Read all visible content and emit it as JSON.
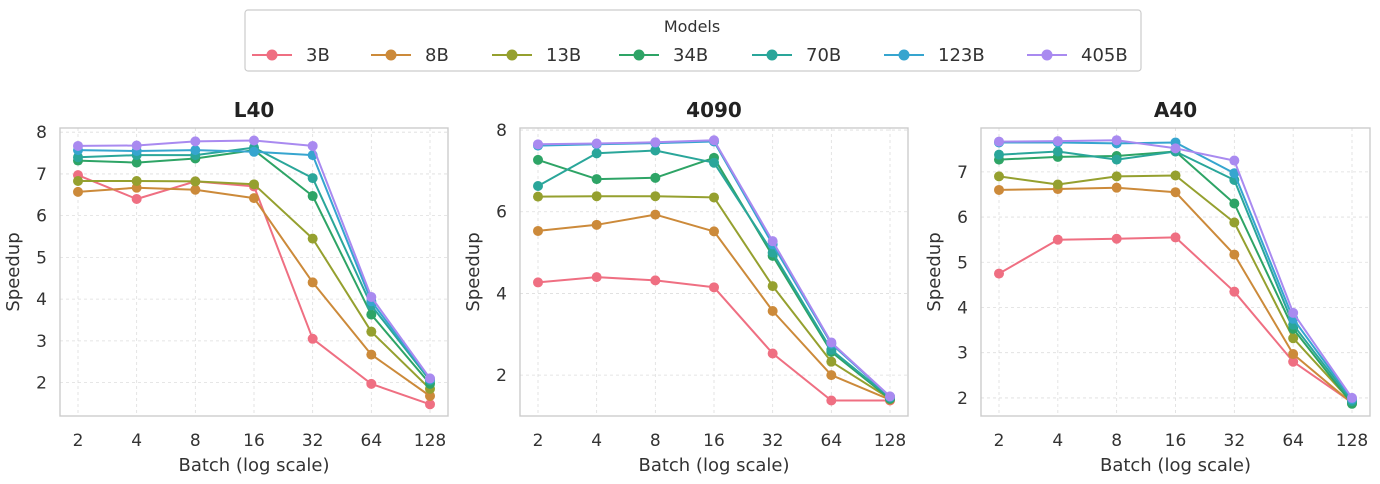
{
  "chart_data": {
    "type": "line",
    "legend": {
      "title": "Models",
      "placement": "top-center",
      "entries": [
        "3B",
        "8B",
        "13B",
        "34B",
        "70B",
        "123B",
        "405B"
      ]
    },
    "colors": {
      "3B": "#ef6f82",
      "8B": "#cc8a3a",
      "13B": "#95a02f",
      "34B": "#2ea466",
      "70B": "#2aa69a",
      "123B": "#36a5cf",
      "405B": "#a98af0"
    },
    "x": [
      2,
      4,
      8,
      16,
      32,
      64,
      128
    ],
    "x_tick_labels": [
      "2",
      "4",
      "8",
      "16",
      "32",
      "64",
      "128"
    ],
    "x_scale": "log2",
    "grid": true,
    "panels": [
      {
        "title": "L40",
        "xlabel": "Batch (log scale)",
        "ylabel": "Speedup",
        "ylim": [
          1.2,
          8.1
        ],
        "yticks": [
          2,
          3,
          4,
          5,
          6,
          7,
          8
        ],
        "series": [
          {
            "name": "3B",
            "values": [
              6.97,
              6.4,
              6.82,
              6.7,
              3.05,
              1.97,
              1.48
            ]
          },
          {
            "name": "8B",
            "values": [
              6.57,
              6.67,
              6.62,
              6.42,
              4.4,
              2.67,
              1.68
            ]
          },
          {
            "name": "13B",
            "values": [
              6.83,
              6.83,
              6.82,
              6.75,
              5.45,
              3.22,
              1.85
            ]
          },
          {
            "name": "34B",
            "values": [
              7.32,
              7.27,
              7.37,
              7.57,
              6.47,
              3.63,
              1.97
            ]
          },
          {
            "name": "70B",
            "values": [
              7.4,
              7.45,
              7.45,
              7.63,
              6.9,
              3.85,
              2.05
            ]
          },
          {
            "name": "123B",
            "values": [
              7.57,
              7.55,
              7.57,
              7.53,
              7.45,
              3.95,
              2.08
            ]
          },
          {
            "name": "405B",
            "values": [
              7.67,
              7.68,
              7.78,
              7.8,
              7.67,
              4.05,
              2.1
            ]
          }
        ]
      },
      {
        "title": "4090",
        "xlabel": "Batch (log scale)",
        "ylabel": "Speedup",
        "ylim": [
          1.0,
          8.05
        ],
        "yticks": [
          2,
          4,
          6,
          8
        ],
        "series": [
          {
            "name": "3B",
            "values": [
              4.27,
              4.4,
              4.32,
              4.15,
              2.53,
              1.38,
              1.38
            ]
          },
          {
            "name": "8B",
            "values": [
              5.53,
              5.68,
              5.93,
              5.52,
              3.57,
              2.0,
              1.4
            ]
          },
          {
            "name": "13B",
            "values": [
              6.37,
              6.38,
              6.38,
              6.35,
              4.18,
              2.33,
              1.42
            ]
          },
          {
            "name": "34B",
            "values": [
              7.27,
              6.8,
              6.83,
              7.32,
              4.92,
              2.57,
              1.42
            ]
          },
          {
            "name": "70B",
            "values": [
              6.63,
              7.43,
              7.5,
              7.2,
              5.0,
              2.62,
              1.45
            ]
          },
          {
            "name": "123B",
            "values": [
              7.62,
              7.65,
              7.68,
              7.72,
              5.2,
              2.77,
              1.47
            ]
          },
          {
            "name": "405B",
            "values": [
              7.65,
              7.67,
              7.7,
              7.75,
              5.28,
              2.8,
              1.48
            ]
          }
        ]
      },
      {
        "title": "A40",
        "xlabel": "Batch (log scale)",
        "ylabel": "Speedup",
        "ylim": [
          1.6,
          7.97
        ],
        "yticks": [
          2,
          3,
          4,
          5,
          6,
          7
        ],
        "series": [
          {
            "name": "3B",
            "values": [
              4.75,
              5.5,
              5.52,
              5.55,
              4.35,
              2.8,
              1.9
            ]
          },
          {
            "name": "8B",
            "values": [
              6.6,
              6.62,
              6.65,
              6.55,
              5.17,
              2.97,
              1.88
            ]
          },
          {
            "name": "13B",
            "values": [
              6.9,
              6.72,
              6.9,
              6.92,
              5.88,
              3.32,
              1.9
            ]
          },
          {
            "name": "34B",
            "values": [
              7.27,
              7.33,
              7.35,
              7.45,
              6.3,
              3.53,
              1.87
            ]
          },
          {
            "name": "70B",
            "values": [
              7.38,
              7.45,
              7.27,
              7.45,
              6.82,
              3.62,
              1.93
            ]
          },
          {
            "name": "123B",
            "values": [
              7.65,
              7.65,
              7.63,
              7.65,
              6.97,
              3.75,
              1.97
            ]
          },
          {
            "name": "405B",
            "values": [
              7.67,
              7.68,
              7.7,
              7.52,
              7.25,
              3.88,
              2.0
            ]
          }
        ]
      }
    ]
  }
}
